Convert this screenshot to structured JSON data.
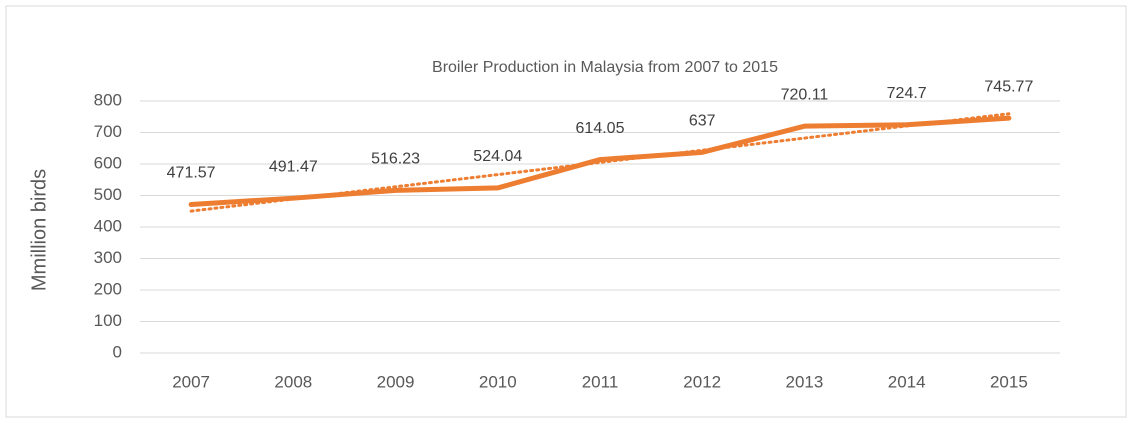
{
  "chart_data": {
    "type": "line",
    "title": "Broiler Production in Malaysia from 2007 to 2015",
    "y_label": "Mmillion birds",
    "categories": [
      "2007",
      "2008",
      "2009",
      "2010",
      "2011",
      "2012",
      "2013",
      "2014",
      "2015"
    ],
    "series": [
      {
        "name": "Broiler Production",
        "color": "#ed7d31",
        "values": [
          471.57,
          491.47,
          516.23,
          524.04,
          614.05,
          637,
          720.11,
          724.7,
          745.77
        ]
      }
    ],
    "trendline": "linear",
    "ylim": [
      0,
      800
    ],
    "yticks": [
      0,
      100,
      200,
      300,
      400,
      500,
      600,
      700,
      800
    ],
    "grid": true
  }
}
